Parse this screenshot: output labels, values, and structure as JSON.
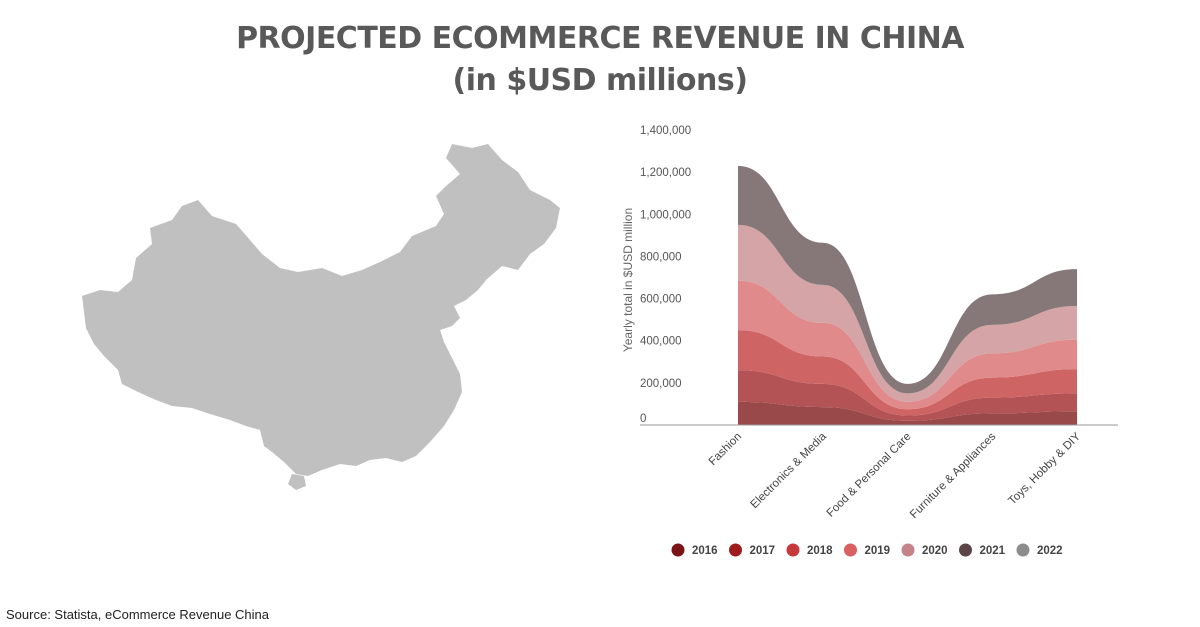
{
  "header": {
    "title_line1": "PROJECTED ECOMMERCE REVENUE IN CHINA",
    "title_line2": "(in $USD millions)"
  },
  "map": {
    "region": "China",
    "fill": "#c0c0c0"
  },
  "source": "Source: Statista, eCommerce Revenue China",
  "chart_data": {
    "type": "area",
    "stacked": true,
    "smooth": true,
    "categories": [
      "Fashion",
      "Electronics & Media",
      "Food & Personal Care",
      "Furniture & Appliances",
      "Toys, Hobby & DIY"
    ],
    "ylabel": "Yearly total in $USD million",
    "ylim": [
      0,
      1400000
    ],
    "yticks": [
      0,
      200000,
      400000,
      600000,
      800000,
      1000000,
      1200000,
      1400000
    ],
    "ytick_labels": [
      "0",
      "200,000",
      "400,000",
      "600,000",
      "800,000",
      "1,000,000",
      "1,200,000",
      "1,400,000"
    ],
    "legend_position": "bottom",
    "series": [
      {
        "name": "2016",
        "color": "#99494a",
        "legend_color": "#7b1416",
        "values": [
          110000,
          85000,
          20000,
          55000,
          65000
        ]
      },
      {
        "name": "2017",
        "color": "#b45355",
        "legend_color": "#9e1b1e",
        "values": [
          150000,
          110000,
          25000,
          75000,
          85000
        ]
      },
      {
        "name": "2018",
        "color": "#cf6465",
        "legend_color": "#c7383b",
        "values": [
          190000,
          130000,
          30000,
          95000,
          115000
        ]
      },
      {
        "name": "2019",
        "color": "#e08a8b",
        "legend_color": "#d95f61",
        "values": [
          235000,
          160000,
          35000,
          115000,
          140000
        ]
      },
      {
        "name": "2020",
        "color": "#d4a4a6",
        "legend_color": "#c48487",
        "values": [
          265000,
          180000,
          40000,
          135000,
          160000
        ]
      },
      {
        "name": "2021",
        "color": "#867878",
        "legend_color": "#5b4448",
        "values": [
          280000,
          200000,
          45000,
          145000,
          175000
        ]
      },
      {
        "name": "2022",
        "color": "#9a9a9a",
        "legend_color": "#8c8c8c",
        "values": [
          0,
          0,
          0,
          0,
          0
        ]
      }
    ]
  }
}
